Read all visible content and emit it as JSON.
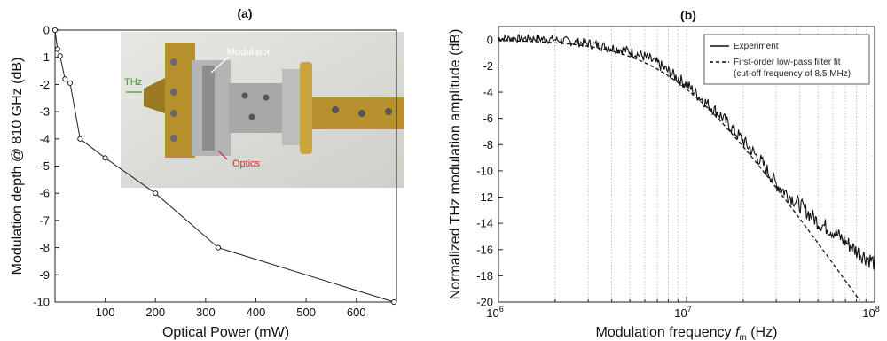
{
  "chart_data": [
    {
      "type": "line",
      "panel_label": "(a)",
      "xlabel": "Optical Power (mW)",
      "ylabel": "Modulation depth @ 810 GHz (dB)",
      "xlim": [
        0,
        680
      ],
      "ylim": [
        -10,
        0
      ],
      "xticks": [
        100,
        200,
        300,
        400,
        500,
        600
      ],
      "yticks": [
        0,
        -1,
        -2,
        -3,
        -4,
        -5,
        -6,
        -7,
        -8,
        -9,
        -10
      ],
      "grid": false,
      "marker": "open-circle",
      "line_color": "#222222",
      "series": [
        {
          "x": [
            0,
            5,
            10,
            20,
            30,
            50,
            100,
            200,
            325,
            675
          ],
          "values": [
            0,
            -0.7,
            -0.95,
            -1.8,
            -1.95,
            -4.0,
            -4.7,
            -6.0,
            -8.0,
            -10.0
          ]
        }
      ],
      "inset_photo": {
        "labels": [
          "Modulator",
          "THz",
          "Optics"
        ],
        "label_colors": [
          "#ffffff",
          "#3a9a2a",
          "#d8282a"
        ]
      }
    },
    {
      "type": "line",
      "panel_label": "(b)",
      "xlabel_main": "Modulation frequency ",
      "xlabel_f": "f",
      "xlabel_sub": "m",
      "xlabel_unit": " (Hz)",
      "ylabel": "Normalized THz modulation amplitude (dB)",
      "xscale": "log",
      "xlim": [
        1000000,
        100000000
      ],
      "ylim": [
        -20,
        1
      ],
      "xticks": [
        {
          "base": "10",
          "exp": "6"
        },
        {
          "base": "10",
          "exp": "7"
        },
        {
          "base": "10",
          "exp": "8"
        }
      ],
      "yticks": [
        0,
        -2,
        -4,
        -6,
        -8,
        -10,
        -12,
        -14,
        -16,
        -18,
        -20
      ],
      "grid": "minor-vertical-dotted",
      "legend_position": "top-right",
      "series": [
        {
          "name": "Experiment",
          "style": "solid-noisy",
          "x": [
            1000000,
            1500000,
            2000000,
            3000000,
            4000000,
            5000000,
            6000000,
            7000000,
            8500000,
            10000000,
            12000000,
            15000000,
            20000000,
            25000000,
            30000000,
            40000000,
            50000000,
            60000000,
            70000000,
            80000000,
            100000000
          ],
          "values": [
            0.1,
            0.1,
            0.0,
            -0.3,
            -0.6,
            -0.9,
            -1.3,
            -1.8,
            -2.7,
            -3.4,
            -4.5,
            -5.7,
            -7.7,
            -9.3,
            -11.0,
            -12.6,
            -13.9,
            -14.6,
            -15.4,
            -16.1,
            -17.0
          ]
        },
        {
          "name": "First-order low-pass filter fit",
          "name_line2": "(cut-off frequency of 8.5 MHz)",
          "style": "dashed",
          "cutoff_hz": 8500000
        }
      ]
    }
  ]
}
